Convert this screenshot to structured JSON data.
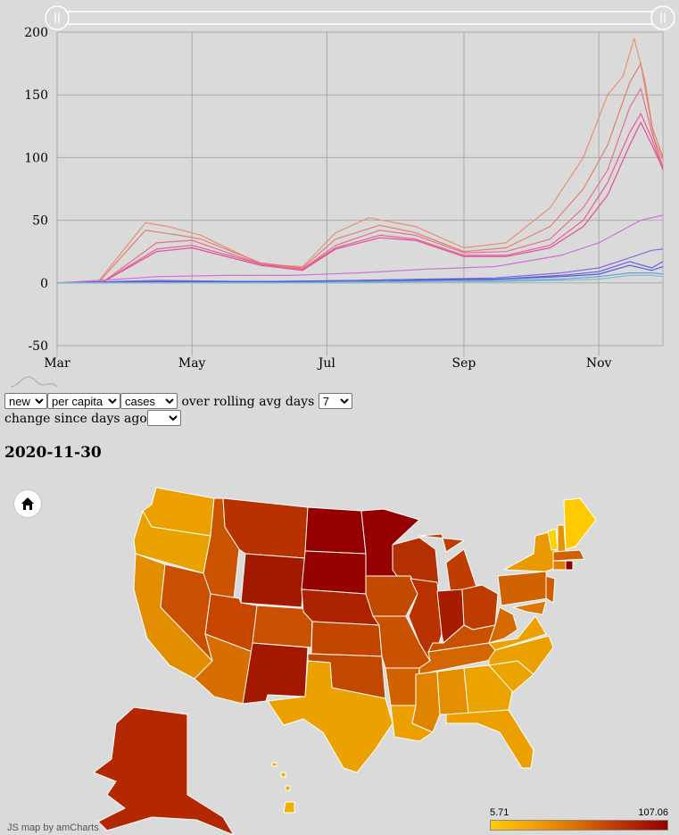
{
  "chart_data": {
    "type": "line",
    "title": "",
    "xlabel": "",
    "ylabel": "",
    "x_ticks": [
      "Mar",
      "May",
      "Jul",
      "Sep",
      "Nov"
    ],
    "y_ticks": [
      -50,
      0,
      50,
      100,
      150,
      200
    ],
    "ylim": [
      -50,
      200
    ],
    "xlim": [
      "2020-03-01",
      "2020-11-30"
    ],
    "grid": true,
    "legend": "none",
    "series": [
      {
        "color": "#e8916e",
        "x": [
          "2020-03-01",
          "2020-03-20",
          "2020-04-10",
          "2020-04-20",
          "2020-05-05",
          "2020-06-01",
          "2020-06-20",
          "2020-07-05",
          "2020-07-20",
          "2020-08-10",
          "2020-09-01",
          "2020-09-20",
          "2020-10-10",
          "2020-10-25",
          "2020-11-05",
          "2020-11-12",
          "2020-11-17",
          "2020-11-22",
          "2020-11-26",
          "2020-11-30"
        ],
        "y": [
          0,
          2,
          48,
          45,
          38,
          15,
          13,
          40,
          52,
          45,
          28,
          32,
          60,
          100,
          150,
          165,
          195,
          160,
          115,
          98
        ]
      },
      {
        "color": "#e07f70",
        "x": [
          "2020-03-01",
          "2020-03-20",
          "2020-04-10",
          "2020-04-25",
          "2020-05-05",
          "2020-06-01",
          "2020-06-20",
          "2020-07-05",
          "2020-07-25",
          "2020-08-10",
          "2020-09-01",
          "2020-09-20",
          "2020-10-10",
          "2020-10-25",
          "2020-11-05",
          "2020-11-15",
          "2020-11-20",
          "2020-11-25",
          "2020-11-30"
        ],
        "y": [
          0,
          1,
          42,
          38,
          35,
          16,
          12,
          35,
          46,
          40,
          25,
          28,
          45,
          75,
          110,
          160,
          175,
          125,
          100
        ]
      },
      {
        "color": "#e3728c",
        "x": [
          "2020-03-01",
          "2020-03-22",
          "2020-04-15",
          "2020-05-01",
          "2020-06-01",
          "2020-06-20",
          "2020-07-05",
          "2020-07-25",
          "2020-08-10",
          "2020-09-01",
          "2020-09-20",
          "2020-10-10",
          "2020-10-25",
          "2020-11-05",
          "2020-11-15",
          "2020-11-20",
          "2020-11-25",
          "2020-11-30"
        ],
        "y": [
          0,
          1,
          32,
          34,
          15,
          11,
          30,
          42,
          38,
          24,
          25,
          35,
          60,
          90,
          140,
          155,
          120,
          92
        ]
      },
      {
        "color": "#ec5a96",
        "x": [
          "2020-03-01",
          "2020-03-22",
          "2020-04-15",
          "2020-05-01",
          "2020-06-01",
          "2020-06-20",
          "2020-07-05",
          "2020-07-25",
          "2020-08-10",
          "2020-09-01",
          "2020-09-20",
          "2020-10-10",
          "2020-10-25",
          "2020-11-05",
          "2020-11-15",
          "2020-11-20",
          "2020-11-25",
          "2020-11-30"
        ],
        "y": [
          0,
          1,
          27,
          30,
          15,
          11,
          28,
          38,
          35,
          22,
          22,
          30,
          50,
          80,
          120,
          135,
          115,
          90
        ]
      },
      {
        "color": "#e04e9a",
        "x": [
          "2020-03-01",
          "2020-03-22",
          "2020-04-15",
          "2020-05-01",
          "2020-06-01",
          "2020-06-20",
          "2020-07-05",
          "2020-07-25",
          "2020-08-10",
          "2020-09-01",
          "2020-09-20",
          "2020-10-10",
          "2020-10-25",
          "2020-11-05",
          "2020-11-15",
          "2020-11-20",
          "2020-11-25",
          "2020-11-30"
        ],
        "y": [
          0,
          1,
          25,
          28,
          14,
          10,
          27,
          36,
          34,
          21,
          21,
          28,
          45,
          70,
          110,
          128,
          110,
          91
        ]
      },
      {
        "color": "#cf70db",
        "x": [
          "2020-03-01",
          "2020-03-20",
          "2020-04-15",
          "2020-05-15",
          "2020-06-15",
          "2020-07-15",
          "2020-08-15",
          "2020-09-15",
          "2020-10-15",
          "2020-11-01",
          "2020-11-20",
          "2020-11-30"
        ],
        "y": [
          0,
          2,
          5,
          6,
          6,
          8,
          11,
          13,
          22,
          32,
          50,
          54
        ]
      },
      {
        "color": "#8e64dd",
        "x": [
          "2020-03-01",
          "2020-04-15",
          "2020-06-01",
          "2020-07-15",
          "2020-08-15",
          "2020-09-15",
          "2020-10-15",
          "2020-11-01",
          "2020-11-15",
          "2020-11-25",
          "2020-11-30"
        ],
        "y": [
          0,
          2,
          1,
          2,
          3,
          4,
          8,
          12,
          20,
          26,
          27
        ]
      },
      {
        "color": "#6a5cd8",
        "x": [
          "2020-03-01",
          "2020-04-15",
          "2020-06-01",
          "2020-07-15",
          "2020-08-15",
          "2020-09-15",
          "2020-10-15",
          "2020-11-01",
          "2020-11-15",
          "2020-11-25",
          "2020-11-30"
        ],
        "y": [
          0,
          1,
          1,
          2,
          3,
          3,
          6,
          9,
          17,
          12,
          17
        ]
      },
      {
        "color": "#4a62d6",
        "x": [
          "2020-03-01",
          "2020-04-15",
          "2020-06-01",
          "2020-07-15",
          "2020-08-15",
          "2020-09-15",
          "2020-10-15",
          "2020-11-01",
          "2020-11-15",
          "2020-11-25",
          "2020-11-30"
        ],
        "y": [
          0,
          1,
          1,
          1,
          2,
          3,
          5,
          7,
          14,
          10,
          13
        ]
      },
      {
        "color": "#6aa0d8",
        "x": [
          "2020-03-01",
          "2020-04-15",
          "2020-06-01",
          "2020-07-15",
          "2020-08-15",
          "2020-09-15",
          "2020-10-15",
          "2020-11-01",
          "2020-11-15",
          "2020-11-25",
          "2020-11-30"
        ],
        "y": [
          0,
          0,
          0,
          1,
          1,
          2,
          3,
          5,
          8,
          8,
          7
        ]
      },
      {
        "color": "#7cc0cf",
        "x": [
          "2020-03-01",
          "2020-04-15",
          "2020-06-01",
          "2020-07-15",
          "2020-08-15",
          "2020-09-15",
          "2020-10-15",
          "2020-11-01",
          "2020-11-15",
          "2020-11-25",
          "2020-11-30"
        ],
        "y": [
          0,
          0,
          0,
          0,
          1,
          1,
          2,
          3,
          6,
          6,
          5
        ]
      }
    ]
  },
  "colors": {
    "grid": "#a9a9a9",
    "range_track": "#ffffff",
    "map_low": "#ffcc00",
    "map_high": "#960000"
  },
  "controls": {
    "type_select": "new",
    "scale_select": "per capita",
    "metric_select": "cases",
    "rolling_text": "over rolling avg days",
    "rolling_select": "7",
    "change_text": "change since days ago",
    "change_select": ""
  },
  "map": {
    "date": "2020-11-30",
    "legend_min": "5.71",
    "legend_max": "107.06",
    "home_icon": "home-icon",
    "credit": "JS map by amCharts"
  }
}
